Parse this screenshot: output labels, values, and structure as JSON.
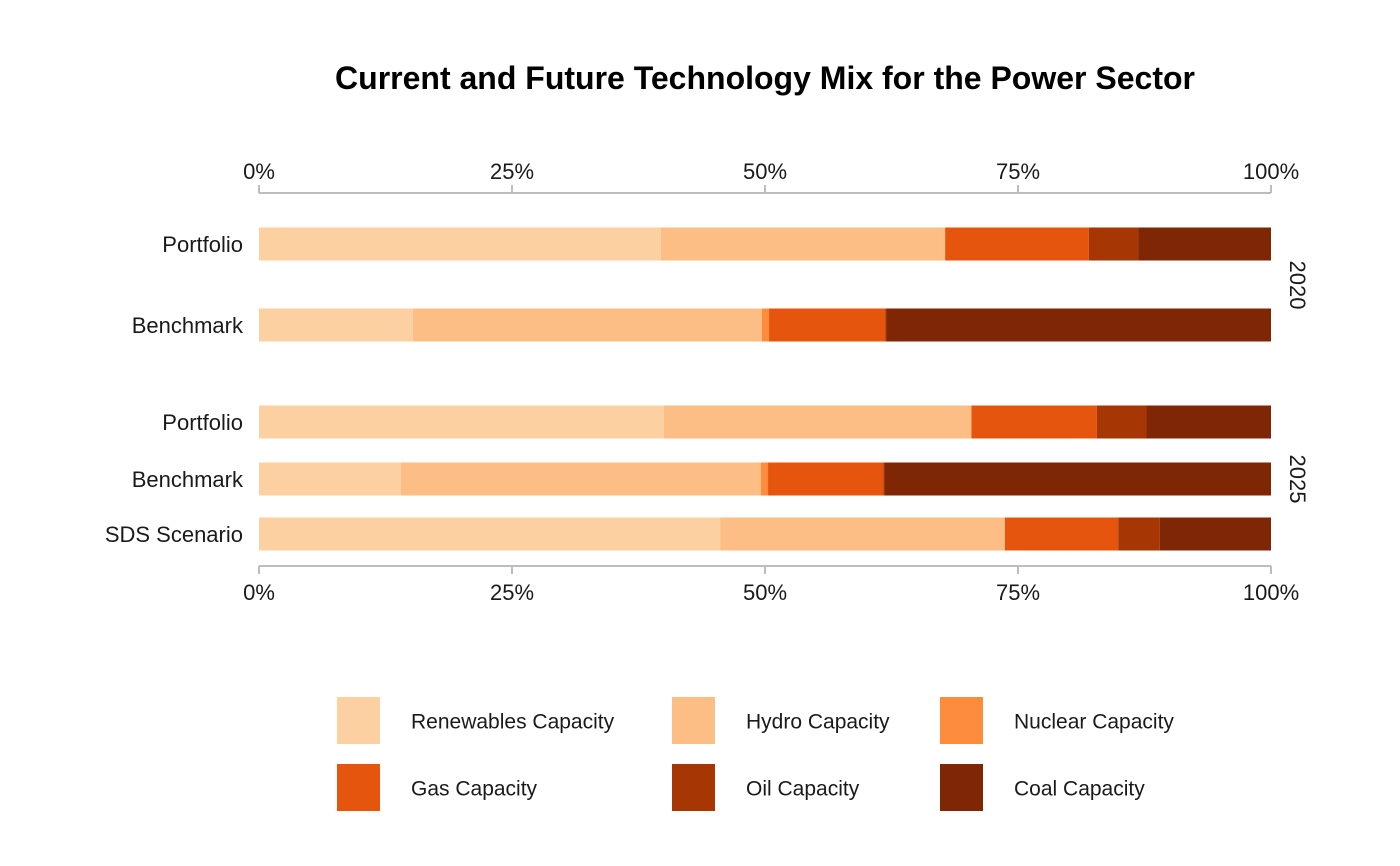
{
  "chart_data": {
    "type": "bar",
    "orientation": "horizontal",
    "stacked": true,
    "title": "Current and Future Technology Mix for the Power Sector",
    "xlim": [
      0,
      1
    ],
    "x_ticks": [
      0,
      0.25,
      0.5,
      0.75,
      1
    ],
    "x_tick_labels": [
      "0%",
      "25%",
      "50%",
      "75%",
      "100%"
    ],
    "x_axis_positions": [
      "top",
      "bottom"
    ],
    "grid": false,
    "legend_position": "bottom",
    "series": [
      {
        "name": "Renewables Capacity",
        "color": "#fdd0a2"
      },
      {
        "name": "Hydro Capacity",
        "color": "#fdbe85"
      },
      {
        "name": "Nuclear Capacity",
        "color": "#fd8d3c"
      },
      {
        "name": "Gas Capacity",
        "color": "#e6550d"
      },
      {
        "name": "Oil Capacity",
        "color": "#a63603"
      },
      {
        "name": "Coal Capacity",
        "color": "#7f2704"
      }
    ],
    "facets": [
      {
        "label": "2020",
        "bars": [
          {
            "label": "Portfolio",
            "values": [
              0.397,
              0.281,
              0.0,
              0.142,
              0.049,
              0.131
            ]
          },
          {
            "label": "Benchmark",
            "values": [
              0.152,
              0.345,
              0.007,
              0.115,
              0.001,
              0.38
            ]
          }
        ]
      },
      {
        "label": "2025",
        "bars": [
          {
            "label": "Portfolio",
            "values": [
              0.4,
              0.304,
              0.0,
              0.124,
              0.049,
              0.123
            ]
          },
          {
            "label": "Benchmark",
            "values": [
              0.14,
              0.356,
              0.007,
              0.114,
              0.001,
              0.382
            ]
          },
          {
            "label": "SDS Scenario",
            "values": [
              0.456,
              0.281,
              0.0,
              0.112,
              0.041,
              0.11
            ]
          }
        ]
      }
    ]
  }
}
